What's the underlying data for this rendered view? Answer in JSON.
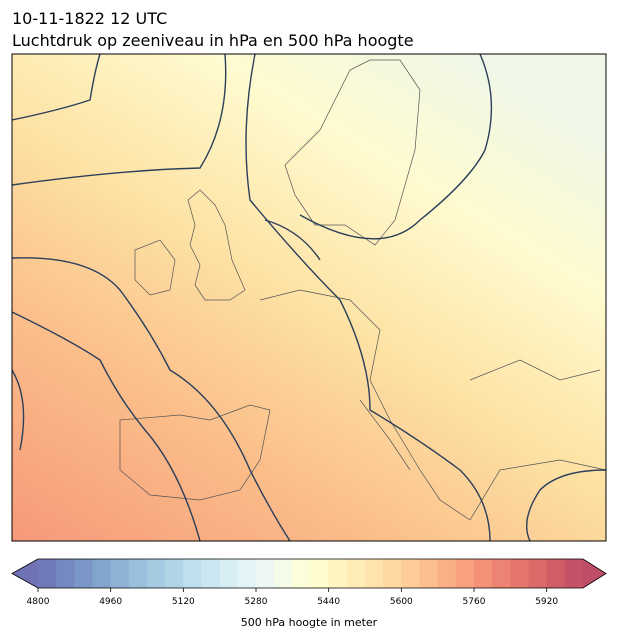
{
  "header": {
    "title": "10-11-1822 12 UTC",
    "subtitle": "Luchtdruk op zeeniveau in hPa en 500 hPa hoogte"
  },
  "colorbar": {
    "label": "500 hPa hoogte in meter",
    "range": [
      4800,
      6000
    ],
    "ticks": [
      4800,
      4960,
      5120,
      5280,
      5440,
      5600,
      5760,
      5920
    ],
    "colormap": [
      "#313695",
      "#4575b4",
      "#74add1",
      "#abd9e9",
      "#e0f3f8",
      "#ffffbf",
      "#fee090",
      "#fdae61",
      "#f46d43",
      "#d73027",
      "#a50026"
    ],
    "alpha": 0.7,
    "segments": 30,
    "extend": "both"
  }
}
